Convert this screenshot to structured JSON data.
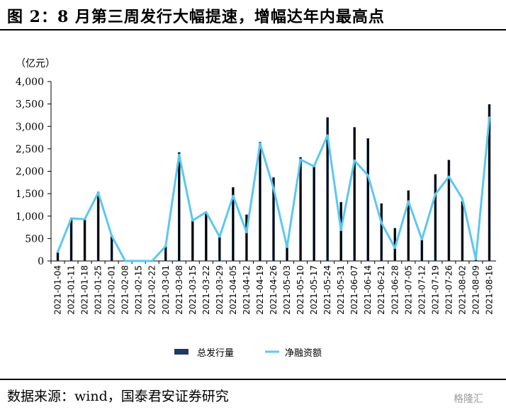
{
  "figure_title": "图 2：8 月第三周发行大幅提速，增幅达年内最高点",
  "source_note": "数据来源：wind，国泰君安证券研究",
  "watermark_text": "格隆汇",
  "chart_data": {
    "type": "bar+line",
    "unit_label": "（亿元）",
    "categories": [
      "2021-01-04",
      "2021-01-11",
      "2021-01-18",
      "2021-01-25",
      "2021-02-01",
      "2021-02-08",
      "2021-02-15",
      "2021-02-22",
      "2021-03-01",
      "2021-03-08",
      "2021-03-15",
      "2021-03-22",
      "2021-03-29",
      "2021-04-05",
      "2021-04-12",
      "2021-04-19",
      "2021-04-26",
      "2021-05-03",
      "2021-05-10",
      "2021-05-17",
      "2021-05-24",
      "2021-05-31",
      "2021-06-07",
      "2021-06-14",
      "2021-06-21",
      "2021-06-28",
      "2021-07-05",
      "2021-07-12",
      "2021-07-19",
      "2021-07-26",
      "2021-08-02",
      "2021-08-09",
      "2021-08-16"
    ],
    "y_ticks": [
      "0",
      "500",
      "1,000",
      "1,500",
      "2,000",
      "2,500",
      "3,000",
      "3,500",
      "4,000"
    ],
    "ylim": [
      0,
      4000
    ],
    "series": [
      {
        "name": "总发行量",
        "kind": "bar",
        "color": "#1f3864",
        "values": [
          200,
          950,
          950,
          1540,
          570,
          0,
          0,
          0,
          330,
          2420,
          920,
          1060,
          560,
          1640,
          1030,
          2650,
          1860,
          330,
          2310,
          2130,
          3200,
          1310,
          2980,
          2730,
          1280,
          730,
          1570,
          470,
          1930,
          2250,
          1330,
          30,
          3490
        ]
      },
      {
        "name": "净融资额",
        "kind": "line",
        "color": "#5bc8f0",
        "values": [
          200,
          950,
          930,
          1520,
          560,
          0,
          0,
          0,
          330,
          2370,
          900,
          1090,
          540,
          1450,
          640,
          2620,
          1620,
          310,
          2260,
          2110,
          2800,
          690,
          2240,
          1910,
          850,
          290,
          1330,
          480,
          1490,
          1880,
          1390,
          40,
          3200
        ]
      }
    ],
    "legend_placement": "bottom-center",
    "grid": false
  }
}
